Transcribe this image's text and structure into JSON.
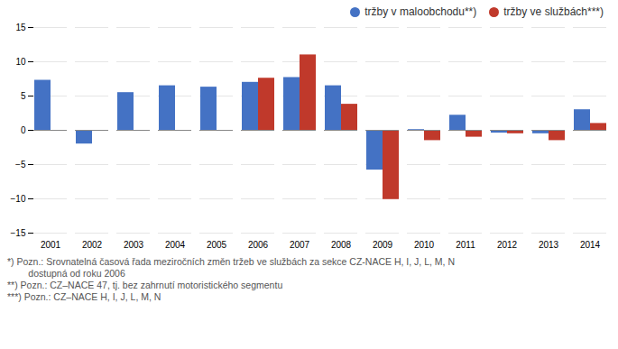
{
  "chart_data": {
    "type": "bar",
    "categories": [
      "2001",
      "2002",
      "2003",
      "2004",
      "2005",
      "2006",
      "2007",
      "2008",
      "2009",
      "2010",
      "2011",
      "2012",
      "2013",
      "2014"
    ],
    "series": [
      {
        "name": "tržby v maloobchodu**)",
        "color": "#4472C4",
        "values": [
          7.3,
          -2.0,
          5.5,
          6.5,
          6.3,
          7.0,
          7.7,
          6.5,
          -5.8,
          0.1,
          2.2,
          -0.4,
          -0.5,
          3.0
        ]
      },
      {
        "name": "tržby ve službách***)",
        "color": "#C0392B",
        "values": [
          null,
          null,
          null,
          null,
          null,
          7.6,
          11.0,
          3.8,
          -10.1,
          -1.5,
          -1.0,
          -0.5,
          -1.5,
          1.0
        ]
      }
    ],
    "ylim": [
      -15,
      15
    ],
    "yticks": [
      -15,
      -10,
      -5,
      0,
      5,
      10,
      15
    ],
    "grid": true,
    "legend": "upper right",
    "annotations": [
      "*) Pozn.: Srovnatelná časová řada meziročních změn tržeb ve službách za sekce CZ-NACE H, I, J, L, M, N",
      "        dostupná od roku 2006",
      "**) Pozn.: CZ–NACE 47, tj. bez zahrnutí motoristického segmentu",
      "***) Pozn.: CZ–NACE H, I, J, L, M, N"
    ]
  }
}
